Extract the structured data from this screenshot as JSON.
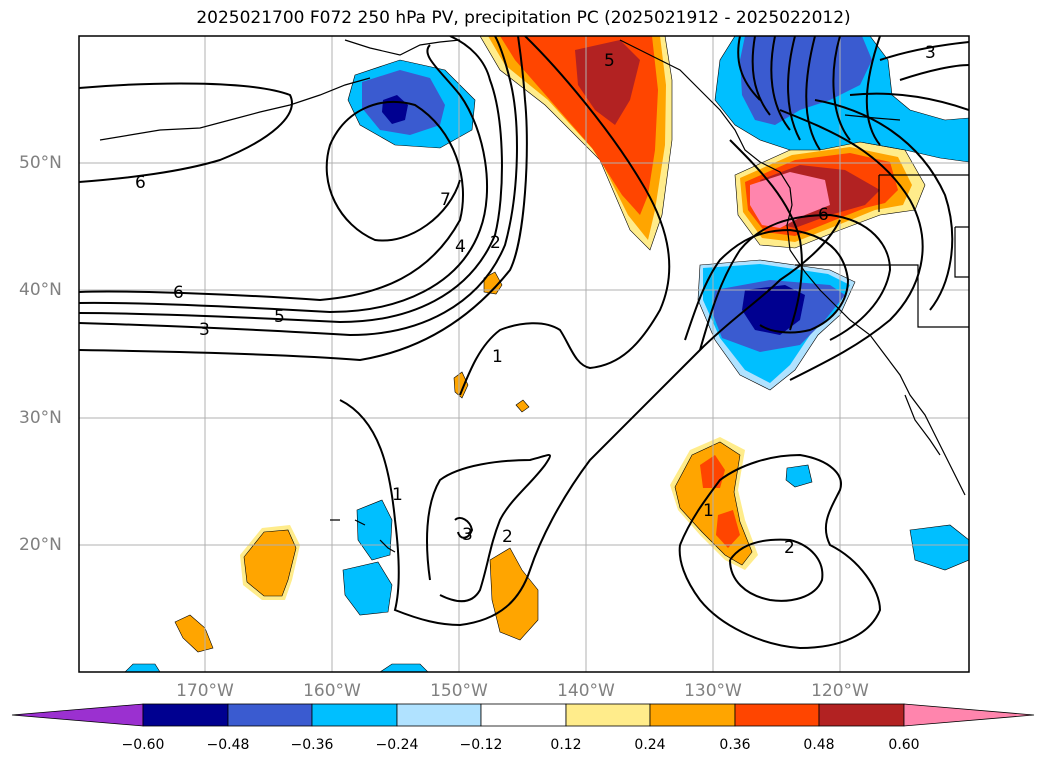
{
  "title": "2025021700 F072 250 hPa PV, precipitation PC (2025021912 - 2025022012)",
  "map": {
    "lat_labels": [
      "50°N",
      "40°N",
      "30°N",
      "20°N"
    ],
    "lon_labels": [
      "170°W",
      "160°W",
      "150°W",
      "140°W",
      "130°W",
      "120°W"
    ],
    "pv_contour_labels": [
      "6",
      "6",
      "5",
      "3",
      "7",
      "4",
      "2",
      "1",
      "1",
      "3",
      "2",
      "1",
      "2",
      "5",
      "6",
      "3"
    ],
    "pv_contour_color": "#000000",
    "coastline_color": "#000000",
    "grid_color": "#b0b0b0",
    "lat_label_color": "#808080"
  },
  "colorbar": {
    "tick_labels": [
      "−0.60",
      "−0.48",
      "−0.36",
      "−0.24",
      "−0.12",
      "0.12",
      "0.24",
      "0.36",
      "0.48",
      "0.60"
    ],
    "colors": [
      "#9b30d0",
      "#000090",
      "#3a5bd0",
      "#00bfff",
      "#b0e2ff",
      "#ffffff",
      "#ffec8b",
      "#ffa500",
      "#ff4500",
      "#b22222",
      "#ff85ad"
    ]
  }
}
